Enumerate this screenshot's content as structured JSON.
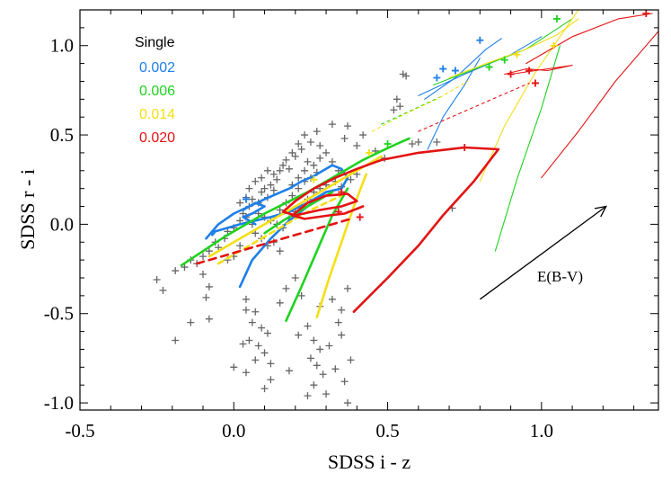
{
  "chart_data": {
    "type": "scatter",
    "xlabel": "SDSS i - z",
    "ylabel": "SDSS r - i",
    "xlim": [
      -0.5,
      1.38
    ],
    "ylim": [
      -1.04,
      1.2
    ],
    "xticks": [
      -0.5,
      0.0,
      0.5,
      1.0
    ],
    "xtick_labels": [
      "-0.5",
      "0.0",
      "0.5",
      "1.0"
    ],
    "yticks": [
      -1.0,
      -0.5,
      0.0,
      0.5,
      1.0
    ],
    "ytick_labels": [
      "-1.0",
      "-0.5",
      "0.0",
      "0.5",
      "1.0"
    ],
    "grid": false,
    "legend": {
      "title": "Single",
      "placement": "top-left",
      "entries": [
        {
          "label": "0.002",
          "color": "#1e7fe8"
        },
        {
          "label": "0.006",
          "color": "#1fd21f"
        },
        {
          "label": "0.014",
          "color": "#f5df16"
        },
        {
          "label": "0.020",
          "color": "#e31313"
        }
      ]
    },
    "annotation": {
      "text": "E(B-V)",
      "arrow_from": [
        0.8,
        -0.42
      ],
      "arrow_to": [
        1.21,
        0.1
      ]
    },
    "observed": {
      "marker": "+",
      "color": "#666666",
      "points": [
        [
          -0.25,
          -0.31
        ],
        [
          -0.23,
          -0.37
        ],
        [
          -0.19,
          -0.26
        ],
        [
          -0.16,
          -0.24
        ],
        [
          -0.14,
          -0.2
        ],
        [
          -0.12,
          -0.22
        ],
        [
          -0.1,
          -0.18
        ],
        [
          -0.08,
          -0.15
        ],
        [
          -0.06,
          -0.1
        ],
        [
          -0.05,
          -0.13
        ],
        [
          -0.03,
          -0.08
        ],
        [
          -0.02,
          -0.04
        ],
        [
          0.0,
          -0.02
        ],
        [
          0.02,
          0.02
        ],
        [
          0.03,
          0.06
        ],
        [
          0.05,
          0.1
        ],
        [
          0.06,
          0.14
        ],
        [
          0.08,
          0.12
        ],
        [
          0.09,
          0.18
        ],
        [
          0.1,
          0.2
        ],
        [
          0.11,
          0.15
        ],
        [
          0.12,
          0.22
        ],
        [
          0.13,
          0.28
        ],
        [
          0.14,
          0.25
        ],
        [
          0.15,
          0.3
        ],
        [
          0.16,
          0.33
        ],
        [
          0.17,
          0.36
        ],
        [
          0.18,
          0.31
        ],
        [
          0.19,
          0.4
        ],
        [
          0.2,
          0.38
        ],
        [
          0.21,
          0.45
        ],
        [
          0.22,
          0.42
        ],
        [
          0.23,
          0.3
        ],
        [
          0.24,
          0.35
        ],
        [
          0.26,
          0.33
        ],
        [
          0.28,
          0.37
        ],
        [
          0.3,
          0.4
        ],
        [
          0.32,
          0.35
        ],
        [
          0.34,
          0.3
        ],
        [
          0.36,
          0.48
        ],
        [
          0.37,
          0.55
        ],
        [
          0.4,
          0.44
        ],
        [
          0.42,
          0.5
        ],
        [
          0.46,
          0.41
        ],
        [
          0.49,
          0.37
        ],
        [
          0.52,
          0.64
        ],
        [
          0.53,
          0.7
        ],
        [
          0.54,
          0.66
        ],
        [
          0.55,
          0.84
        ],
        [
          0.56,
          0.83
        ],
        [
          0.58,
          0.45
        ],
        [
          0.6,
          0.46
        ],
        [
          0.66,
          0.46
        ],
        [
          0.71,
          0.09
        ],
        [
          0.08,
          0.06
        ],
        [
          0.1,
          0.04
        ],
        [
          0.12,
          0.02
        ],
        [
          0.14,
          0.0
        ],
        [
          0.16,
          -0.02
        ],
        [
          0.18,
          0.03
        ],
        [
          0.2,
          0.07
        ],
        [
          0.04,
          0.04
        ],
        [
          0.06,
          0.0
        ],
        [
          0.07,
          -0.05
        ],
        [
          0.09,
          -0.08
        ],
        [
          0.11,
          -0.12
        ],
        [
          0.13,
          -0.1
        ],
        [
          0.15,
          -0.15
        ],
        [
          0.02,
          -0.12
        ],
        [
          0.0,
          -0.18
        ],
        [
          -0.02,
          -0.2
        ],
        [
          0.22,
          0.1
        ],
        [
          0.24,
          0.14
        ],
        [
          0.26,
          0.18
        ],
        [
          0.28,
          0.2
        ],
        [
          0.3,
          0.22
        ],
        [
          0.33,
          0.24
        ],
        [
          0.35,
          0.21
        ],
        [
          0.38,
          0.25
        ],
        [
          0.4,
          0.28
        ],
        [
          -0.1,
          -0.28
        ],
        [
          -0.08,
          -0.35
        ],
        [
          -0.09,
          -0.41
        ],
        [
          -0.14,
          -0.55
        ],
        [
          -0.08,
          -0.53
        ],
        [
          -0.19,
          -0.65
        ],
        [
          0.04,
          -0.42
        ],
        [
          0.04,
          -0.48
        ],
        [
          0.07,
          -0.49
        ],
        [
          0.06,
          -0.55
        ],
        [
          0.09,
          -0.58
        ],
        [
          0.11,
          -0.61
        ],
        [
          0.05,
          -0.65
        ],
        [
          0.1,
          -0.72
        ],
        [
          0.08,
          -0.68
        ],
        [
          0.03,
          -0.67
        ],
        [
          0.07,
          -0.76
        ],
        [
          0.0,
          -0.8
        ],
        [
          0.04,
          -0.83
        ],
        [
          0.12,
          -0.78
        ],
        [
          0.12,
          -0.87
        ],
        [
          0.18,
          -0.82
        ],
        [
          0.1,
          -0.92
        ],
        [
          0.21,
          -0.62
        ],
        [
          0.24,
          -0.57
        ],
        [
          0.26,
          -0.65
        ],
        [
          0.28,
          -0.7
        ],
        [
          0.25,
          -0.75
        ],
        [
          0.27,
          -0.79
        ],
        [
          0.29,
          -0.84
        ],
        [
          0.26,
          -0.9
        ],
        [
          0.3,
          -0.95
        ],
        [
          0.33,
          -0.81
        ],
        [
          0.35,
          -0.62
        ],
        [
          0.36,
          -0.88
        ],
        [
          0.37,
          -1.0
        ],
        [
          0.38,
          -0.76
        ],
        [
          0.24,
          -0.96
        ],
        [
          0.31,
          -0.68
        ],
        [
          0.34,
          -0.55
        ],
        [
          0.28,
          -0.46
        ],
        [
          0.22,
          -0.4
        ],
        [
          0.15,
          -0.44
        ],
        [
          0.17,
          -0.36
        ],
        [
          0.2,
          -0.3
        ],
        [
          0.32,
          -0.42
        ],
        [
          0.35,
          -0.48
        ],
        [
          0.37,
          -0.36
        ],
        [
          0.15,
          0.08
        ],
        [
          0.17,
          0.12
        ],
        [
          0.19,
          0.16
        ],
        [
          0.21,
          0.2
        ],
        [
          0.23,
          0.24
        ],
        [
          0.25,
          0.26
        ],
        [
          0.27,
          0.29
        ],
        [
          0.05,
          0.2
        ],
        [
          0.07,
          0.24
        ],
        [
          0.09,
          0.26
        ],
        [
          0.11,
          0.3
        ],
        [
          0.13,
          0.19
        ],
        [
          0.04,
          0.15
        ],
        [
          0.02,
          0.12
        ],
        [
          0.19,
          0.22
        ],
        [
          0.21,
          0.26
        ],
        [
          0.23,
          0.5
        ],
        [
          0.25,
          0.46
        ],
        [
          0.27,
          0.52
        ],
        [
          0.32,
          0.56
        ],
        [
          0.28,
          0.44
        ]
      ]
    },
    "series": [
      {
        "name": "0.002",
        "color": "#1e7fe8",
        "width": 2.6,
        "dash": "",
        "x": [
          -0.09,
          -0.05,
          0.0,
          0.05,
          0.1,
          0.14,
          0.18,
          0.22,
          0.26,
          0.29,
          0.32,
          0.35,
          0.37,
          0.35,
          0.3,
          0.24,
          0.18,
          0.12,
          0.07,
          0.02,
          -0.02,
          -0.06,
          -0.07
        ],
        "y": [
          -0.08,
          0.0,
          0.06,
          0.1,
          0.14,
          0.17,
          0.2,
          0.24,
          0.27,
          0.3,
          0.33,
          0.31,
          0.26,
          0.2,
          0.18,
          0.12,
          0.07,
          0.04,
          0.02,
          0.0,
          -0.02,
          -0.04,
          -0.06
        ]
      },
      {
        "name": "0.002",
        "color": "#1e7fe8",
        "width": 2.6,
        "dash": "",
        "x": [
          0.02,
          0.06,
          0.12,
          0.18,
          0.24,
          0.3
        ],
        "y": [
          -0.35,
          -0.2,
          -0.08,
          0.02,
          0.1,
          0.18
        ]
      },
      {
        "name": "0.002",
        "color": "#1e7fe8",
        "width": 2.6,
        "dash": "",
        "x": [
          0.03,
          0.07,
          0.1,
          0.06,
          0.03,
          0.07
        ],
        "y": [
          0.08,
          0.12,
          0.1,
          0.06,
          0.04,
          0.0
        ]
      },
      {
        "name": "0.002",
        "color": "#1e7fe8",
        "width": 1.1,
        "dash": "",
        "x": [
          0.6,
          0.75,
          0.9,
          1.0
        ],
        "y": [
          0.72,
          0.84,
          0.95,
          1.05
        ]
      },
      {
        "name": "0.002",
        "color": "#1e7fe8",
        "width": 1.1,
        "dash": "",
        "x": [
          0.62,
          0.72,
          0.82,
          0.87
        ],
        "y": [
          0.7,
          0.82,
          0.98,
          1.04
        ]
      },
      {
        "name": "0.002",
        "color": "#1e7fe8",
        "width": 1.1,
        "dash": "",
        "x": [
          0.63,
          0.68,
          0.75,
          0.8
        ],
        "y": [
          0.42,
          0.6,
          0.78,
          0.93
        ]
      },
      {
        "name": "0.006",
        "color": "#1fd21f",
        "width": 2.6,
        "dash": "",
        "x": [
          -0.17,
          -0.1,
          -0.03,
          0.04,
          0.1,
          0.17,
          0.24,
          0.3,
          0.36,
          0.42,
          0.48,
          0.53,
          0.57
        ],
        "y": [
          -0.23,
          -0.15,
          -0.07,
          0.0,
          0.06,
          0.12,
          0.18,
          0.24,
          0.3,
          0.36,
          0.41,
          0.45,
          0.48
        ]
      },
      {
        "name": "0.006",
        "color": "#1fd21f",
        "width": 2.6,
        "dash": "",
        "x": [
          0.17,
          0.22,
          0.27,
          0.32,
          0.37
        ],
        "y": [
          -0.54,
          -0.35,
          -0.15,
          0.05,
          0.2
        ]
      },
      {
        "name": "0.006",
        "color": "#1fd21f",
        "width": 2.6,
        "dash": "",
        "x": [
          0.1,
          0.16,
          0.22,
          0.28,
          0.32
        ],
        "y": [
          -0.05,
          0.02,
          0.08,
          0.14,
          0.18
        ]
      },
      {
        "name": "0.006",
        "color": "#1fd21f",
        "width": 1.1,
        "dash": "",
        "x": [
          0.65,
          0.8,
          0.95,
          1.1
        ],
        "y": [
          0.78,
          0.88,
          0.98,
          1.15
        ]
      },
      {
        "name": "0.006",
        "color": "#1fd21f",
        "width": 1.1,
        "dash": "",
        "x": [
          0.85,
          0.92,
          1.0,
          1.06
        ],
        "y": [
          -0.15,
          0.25,
          0.65,
          1.0
        ]
      },
      {
        "name": "0.006",
        "color": "#1fd21f",
        "width": 1.1,
        "dash": "3,4",
        "x": [
          0.48,
          0.58,
          0.68
        ],
        "y": [
          0.56,
          0.64,
          0.72
        ]
      },
      {
        "name": "0.014",
        "color": "#f5df16",
        "width": 2.6,
        "dash": "",
        "x": [
          -0.08,
          0.0,
          0.08,
          0.16,
          0.24,
          0.32,
          0.4,
          0.48
        ],
        "y": [
          -0.18,
          -0.1,
          -0.02,
          0.06,
          0.14,
          0.22,
          0.3,
          0.38
        ]
      },
      {
        "name": "0.014",
        "color": "#f5df16",
        "width": 2.6,
        "dash": "",
        "x": [
          0.27,
          0.31,
          0.35,
          0.39,
          0.43
        ],
        "y": [
          -0.52,
          -0.3,
          -0.1,
          0.1,
          0.28
        ]
      },
      {
        "name": "0.014",
        "color": "#f5df16",
        "width": 2.6,
        "dash": "6,5",
        "x": [
          -0.05,
          0.05,
          0.15,
          0.25,
          0.35
        ],
        "y": [
          -0.22,
          -0.12,
          -0.02,
          0.08,
          0.16
        ]
      },
      {
        "name": "0.014",
        "color": "#f5df16",
        "width": 1.1,
        "dash": "",
        "x": [
          0.8,
          0.88,
          0.98,
          1.06,
          1.12
        ],
        "y": [
          0.24,
          0.55,
          0.85,
          1.05,
          1.2
        ]
      },
      {
        "name": "0.014",
        "color": "#f5df16",
        "width": 1.1,
        "dash": "",
        "x": [
          0.7,
          0.82,
          0.95,
          1.05,
          1.12
        ],
        "y": [
          0.82,
          0.9,
          0.98,
          1.06,
          1.15
        ]
      },
      {
        "name": "0.014",
        "color": "#f5df16",
        "width": 1.1,
        "dash": "3,4",
        "x": [
          0.45,
          0.56,
          0.66,
          0.76
        ],
        "y": [
          0.52,
          0.62,
          0.7,
          0.8
        ]
      },
      {
        "name": "0.020",
        "color": "#e31313",
        "width": 2.6,
        "dash": "",
        "x": [
          0.39,
          0.5,
          0.6,
          0.68,
          0.78,
          0.86,
          0.75,
          0.6,
          0.48,
          0.4,
          0.33,
          0.26,
          0.2,
          0.16,
          0.2,
          0.28,
          0.35,
          0.4,
          0.37,
          0.3,
          0.24,
          0.19,
          0.23,
          0.31,
          0.36,
          0.39,
          0.42
        ],
        "y": [
          -0.49,
          -0.3,
          -0.12,
          0.05,
          0.24,
          0.42,
          0.43,
          0.4,
          0.36,
          0.31,
          0.26,
          0.2,
          0.13,
          0.07,
          0.05,
          0.08,
          0.1,
          0.13,
          0.17,
          0.16,
          0.12,
          0.05,
          0.03,
          0.05,
          0.06,
          0.08,
          0.1
        ]
      },
      {
        "name": "0.020",
        "color": "#e31313",
        "width": 2.6,
        "dash": "8,6",
        "x": [
          -0.12,
          -0.02,
          0.08,
          0.18,
          0.28,
          0.38
        ],
        "y": [
          -0.22,
          -0.17,
          -0.12,
          -0.07,
          -0.02,
          0.03
        ]
      },
      {
        "name": "0.020",
        "color": "#e31313",
        "width": 1.1,
        "dash": "",
        "x": [
          1.0,
          1.12,
          1.24,
          1.38
        ],
        "y": [
          0.26,
          0.52,
          0.8,
          1.08
        ]
      },
      {
        "name": "0.020",
        "color": "#e31313",
        "width": 1.1,
        "dash": "",
        "x": [
          0.88,
          0.95,
          1.02,
          1.1,
          0.98,
          0.9
        ],
        "y": [
          0.84,
          0.87,
          0.86,
          0.89,
          0.86,
          0.84
        ]
      },
      {
        "name": "0.020",
        "color": "#e31313",
        "width": 1.1,
        "dash": "",
        "x": [
          0.95,
          1.1,
          1.25,
          1.36
        ],
        "y": [
          0.9,
          1.05,
          1.15,
          1.18
        ]
      },
      {
        "name": "0.020",
        "color": "#e31313",
        "width": 1.1,
        "dash": "3,4",
        "x": [
          0.6,
          0.72,
          0.84,
          0.96
        ],
        "y": [
          0.52,
          0.61,
          0.7,
          0.79
        ]
      }
    ],
    "markers": [
      {
        "x": 0.04,
        "y": 0.14,
        "color": "#1e7fe8"
      },
      {
        "x": 0.8,
        "y": 1.03,
        "color": "#1e7fe8"
      },
      {
        "x": 0.68,
        "y": 0.87,
        "color": "#1e7fe8"
      },
      {
        "x": 0.72,
        "y": 0.86,
        "color": "#1e7fe8"
      },
      {
        "x": 0.66,
        "y": 0.82,
        "color": "#1e7fe8"
      },
      {
        "x": 0.5,
        "y": 0.45,
        "color": "#1fd21f"
      },
      {
        "x": 0.83,
        "y": 0.88,
        "color": "#1fd21f"
      },
      {
        "x": 0.88,
        "y": 0.92,
        "color": "#1fd21f"
      },
      {
        "x": 1.05,
        "y": 1.15,
        "color": "#1fd21f"
      },
      {
        "x": 0.44,
        "y": 0.4,
        "color": "#f5df16"
      },
      {
        "x": 0.26,
        "y": 0.25,
        "color": "#f5df16"
      },
      {
        "x": 0.92,
        "y": 0.95,
        "color": "#f5df16"
      },
      {
        "x": 1.04,
        "y": 1.0,
        "color": "#f5df16"
      },
      {
        "x": 0.75,
        "y": 0.43,
        "color": "#e31313"
      },
      {
        "x": 0.35,
        "y": 0.18,
        "color": "#e31313"
      },
      {
        "x": 0.41,
        "y": 0.04,
        "color": "#e31313"
      },
      {
        "x": 0.34,
        "y": 0.07,
        "color": "#e31313"
      },
      {
        "x": 0.9,
        "y": 0.84,
        "color": "#e31313"
      },
      {
        "x": 0.98,
        "y": 0.79,
        "color": "#e31313"
      },
      {
        "x": 0.96,
        "y": 0.86,
        "color": "#e31313"
      },
      {
        "x": 1.34,
        "y": 1.18,
        "color": "#e31313"
      }
    ]
  }
}
